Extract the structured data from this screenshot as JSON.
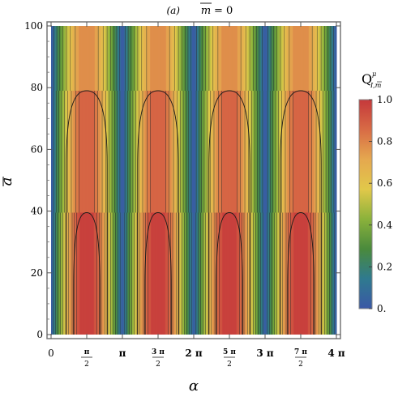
{
  "chart_data": {
    "type": "heatmap",
    "panel_label": "(a)",
    "title_var": "m",
    "title_eq": "= 0",
    "xlabel": "α",
    "ylabel": "a",
    "xlim": [
      0,
      12.566
    ],
    "ylim": [
      0,
      100
    ],
    "x_ticks": [
      {
        "value": 0,
        "num": "0",
        "den": ""
      },
      {
        "value": 1.5708,
        "num": "π",
        "den": "2"
      },
      {
        "value": 3.1416,
        "num": "π",
        "den": ""
      },
      {
        "value": 4.7124,
        "num": "3 π",
        "den": "2"
      },
      {
        "value": 6.2832,
        "num": "2 π",
        "den": ""
      },
      {
        "value": 7.854,
        "num": "5 π",
        "den": "2"
      },
      {
        "value": 9.4248,
        "num": "3 π",
        "den": ""
      },
      {
        "value": 10.9956,
        "num": "7 π",
        "den": "2"
      },
      {
        "value": 12.5664,
        "num": "4 π",
        "den": ""
      }
    ],
    "y_ticks": [
      "0",
      "20",
      "40",
      "60",
      "80",
      "100"
    ],
    "y_tick_values": [
      0,
      20,
      40,
      60,
      80,
      100
    ],
    "colorbar": {
      "label_main": "Q",
      "label_sup": "μ",
      "label_sub": "I,m",
      "range": [
        0,
        1
      ],
      "ticks": [
        "0.",
        "0.2",
        "0.4",
        "0.6",
        "0.8",
        "1.0"
      ],
      "tick_values": [
        0,
        0.2,
        0.4,
        0.6,
        0.8,
        1.0
      ],
      "colors": [
        "#3a58a6",
        "#2f7a8f",
        "#4a8a3c",
        "#8bb23b",
        "#e1c84a",
        "#e5a84f",
        "#d86b45",
        "#c5383b"
      ]
    },
    "description_values": {
      "period": 3.1416,
      "peak_positions": [
        1.5708,
        4.7124,
        7.854,
        10.9956
      ],
      "min_positions": [
        0,
        3.1416,
        6.2832,
        9.4248,
        12.5664
      ],
      "contour_levels": [
        0.1,
        0.2,
        0.3,
        0.4,
        0.5,
        0.6,
        0.7,
        0.8,
        0.85,
        0.9
      ],
      "max_by_a": [
        [
          0,
          1.0
        ],
        [
          39,
          1.0
        ],
        [
          40,
          0.9
        ],
        [
          78,
          0.9
        ],
        [
          80,
          0.8
        ],
        [
          100,
          0.8
        ]
      ]
    }
  }
}
